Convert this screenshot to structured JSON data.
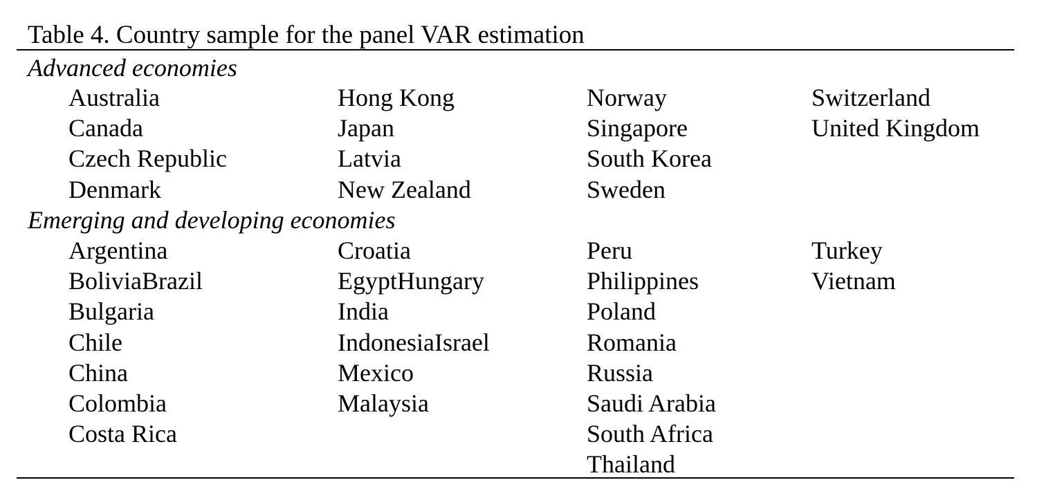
{
  "table": {
    "caption": "Table 4. Country sample for the panel VAR estimation",
    "groups": [
      {
        "label": "Advanced economies",
        "columns": [
          [
            "Australia",
            "Canada",
            "Czech Republic",
            "Denmark"
          ],
          [
            "Hong Kong",
            "Japan",
            "Latvia",
            "New Zealand"
          ],
          [
            "Norway",
            "Singapore",
            "South Korea",
            "Sweden"
          ],
          [
            "Switzerland",
            "United Kingdom"
          ]
        ]
      },
      {
        "label": "Emerging and developing economies",
        "columns": [
          [
            "Argentina",
            "BoliviaBrazil",
            "Bulgaria",
            "Chile",
            "China",
            "Colombia",
            "Costa Rica"
          ],
          [
            "Croatia",
            "EgyptHungary",
            "India",
            "IndonesiaIsrael",
            "Mexico",
            "Malaysia"
          ],
          [
            "Peru",
            "Philippines",
            "Poland",
            "Romania",
            "Russia",
            "Saudi Arabia",
            "South Africa",
            "Thailand"
          ],
          [
            "Turkey",
            "Vietnam"
          ]
        ]
      }
    ]
  }
}
